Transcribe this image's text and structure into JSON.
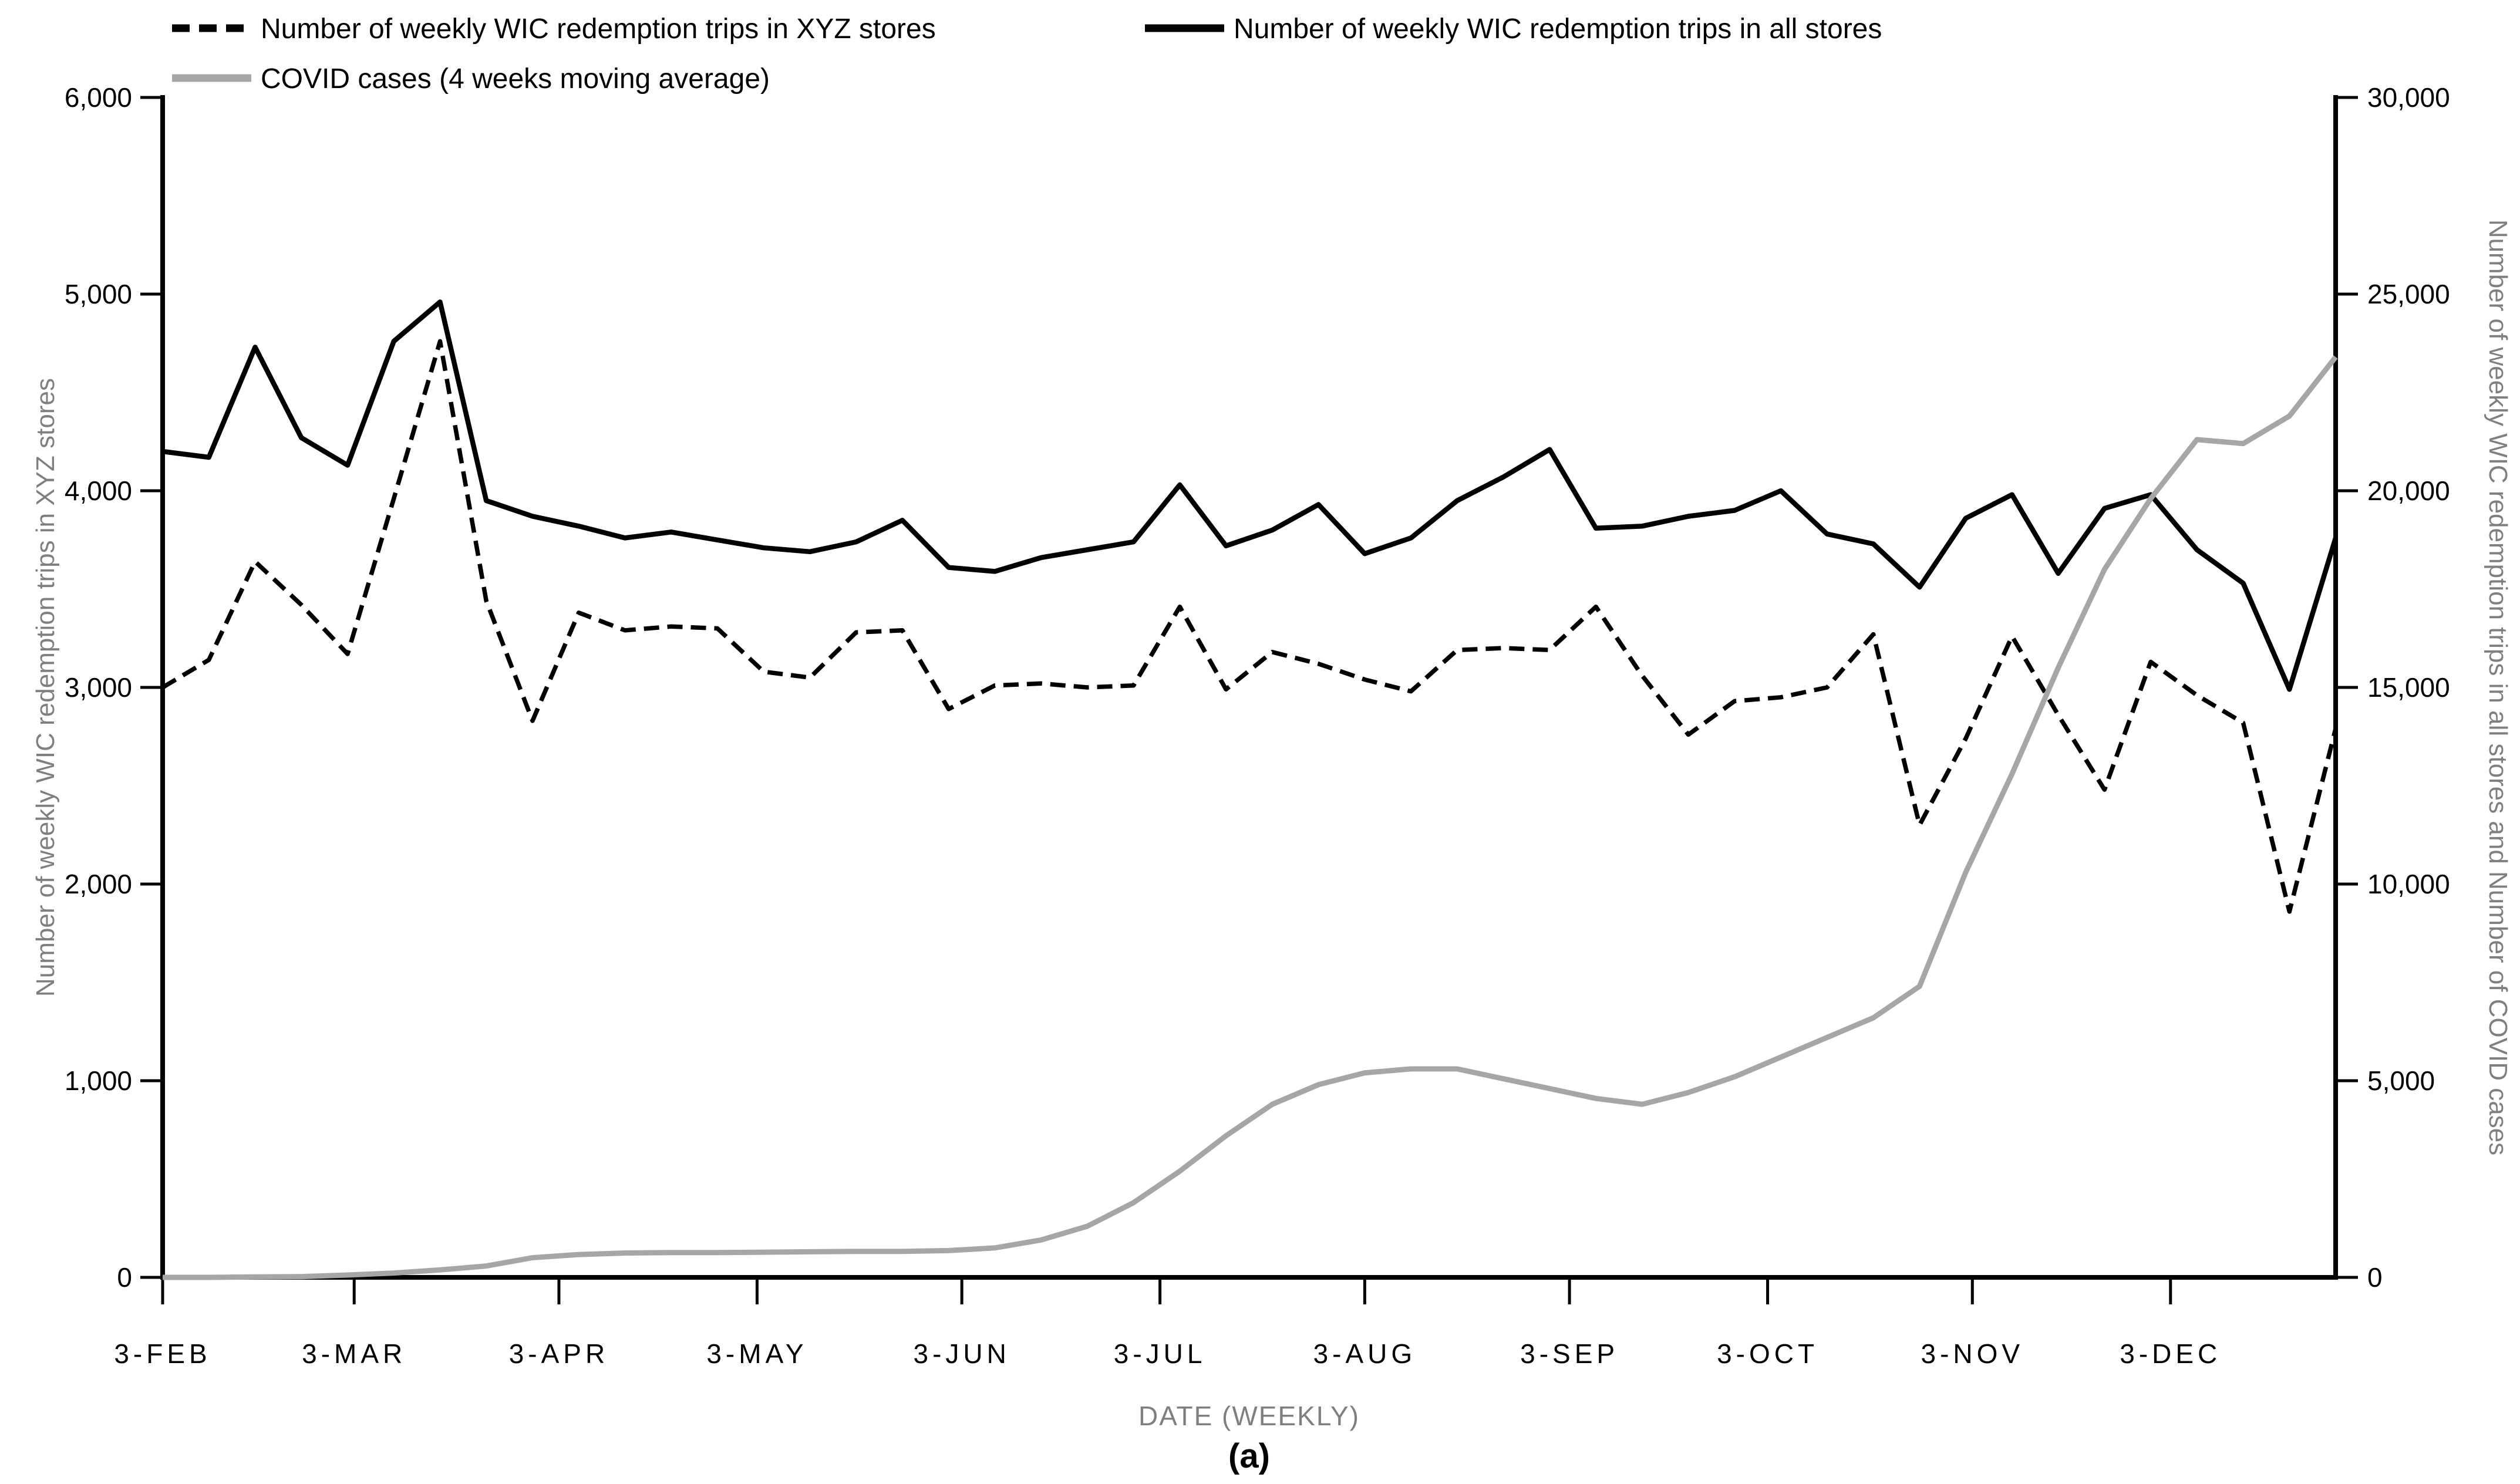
{
  "legend": {
    "items": [
      {
        "id": "xyz",
        "label": "Number of weekly WIC redemption trips in XYZ stores",
        "marker": "dashed-black"
      },
      {
        "id": "all",
        "label": "Number of weekly WIC redemption trips in all stores",
        "marker": "solid-black"
      },
      {
        "id": "covid",
        "label": "COVID cases (4 weeks moving average)",
        "marker": "solid-gray"
      }
    ]
  },
  "axes": {
    "left": {
      "title": "Number of weekly WIC redemption trips in XYZ stores",
      "tick_labels": [
        "0",
        "1,000",
        "2,000",
        "3,000",
        "4,000",
        "5,000",
        "6,000"
      ],
      "tick_values": [
        0,
        1000,
        2000,
        3000,
        4000,
        5000,
        6000
      ]
    },
    "right": {
      "title": "Number of weekly WIC redemption trips in all stores and Number of COVID cases",
      "tick_labels": [
        "0",
        "5,000",
        "10,000",
        "15,000",
        "20,000",
        "25,000",
        "30,000"
      ],
      "tick_values": [
        0,
        5000,
        10000,
        15000,
        20000,
        25000,
        30000
      ]
    },
    "x": {
      "title": "DATE (WEEKLY)",
      "tick_labels": [
        "3-FEB",
        "3-MAR",
        "3-APR",
        "3-MAY",
        "3-JUN",
        "3-JUL",
        "3-AUG",
        "3-SEP",
        "3-OCT",
        "3-NOV",
        "3-DEC"
      ],
      "tick_day_offsets": [
        0,
        29,
        60,
        90,
        121,
        151,
        182,
        213,
        243,
        274,
        304
      ]
    }
  },
  "caption": "(a)",
  "colors": {
    "black": "#000000",
    "gray": "#a6a6a6",
    "axis_title_gray": "#7f7f7f"
  },
  "chart_data": {
    "type": "line",
    "x_start_label": "3-FEB",
    "x_interval": "weekly",
    "n_points": 48,
    "xlabel": "DATE (WEEKLY)",
    "ylabel_left": "Number of weekly WIC redemption trips in XYZ stores",
    "ylabel_right": "Number of weekly WIC redemption trips in all stores and Number of COVID cases",
    "ylim_left": [
      0,
      6000
    ],
    "ylim_right": [
      0,
      30000
    ],
    "grid": false,
    "legend_position": "top-left",
    "series": [
      {
        "name": "Number of weekly WIC redemption trips in XYZ stores",
        "axis": "left",
        "style": "dashed",
        "color": "#000000",
        "values": [
          3000,
          3140,
          3640,
          3420,
          3170,
          3960,
          4760,
          3440,
          2830,
          3380,
          3290,
          3310,
          3300,
          3080,
          3050,
          3280,
          3290,
          2890,
          3010,
          3020,
          3000,
          3010,
          3410,
          2990,
          3180,
          3120,
          3040,
          2980,
          3190,
          3200,
          3190,
          3410,
          3060,
          2760,
          2930,
          2950,
          3000,
          3270,
          2300,
          2740,
          3260,
          2860,
          2480,
          3130,
          2960,
          2820,
          1860,
          2790
        ]
      },
      {
        "name": "Number of weekly WIC redemption trips in all stores",
        "axis": "right",
        "style": "solid",
        "color": "#000000",
        "values": [
          21000,
          20850,
          23650,
          21350,
          20650,
          23800,
          24800,
          19750,
          19350,
          19100,
          18800,
          18950,
          18750,
          18550,
          18450,
          18700,
          19250,
          18050,
          17950,
          18300,
          18500,
          18700,
          20150,
          18600,
          19000,
          19650,
          18400,
          18800,
          19750,
          20350,
          21050,
          19050,
          19100,
          19350,
          19500,
          20000,
          18900,
          18650,
          17550,
          19300,
          19900,
          17900,
          19550,
          19900,
          18500,
          17650,
          14950,
          18800
        ]
      },
      {
        "name": "COVID cases (4 weeks moving average)",
        "axis": "right",
        "style": "solid",
        "color": "#a6a6a6",
        "values": [
          0,
          0,
          10,
          20,
          60,
          110,
          190,
          290,
          500,
          580,
          620,
          630,
          630,
          640,
          650,
          660,
          660,
          680,
          750,
          950,
          1300,
          1900,
          2700,
          3600,
          4400,
          4900,
          5200,
          5300,
          5300,
          5050,
          4800,
          4550,
          4400,
          4700,
          5100,
          5600,
          6100,
          6600,
          7400,
          10300,
          12800,
          15500,
          18000,
          19800,
          21300,
          21200,
          21900,
          23400
        ]
      }
    ]
  }
}
